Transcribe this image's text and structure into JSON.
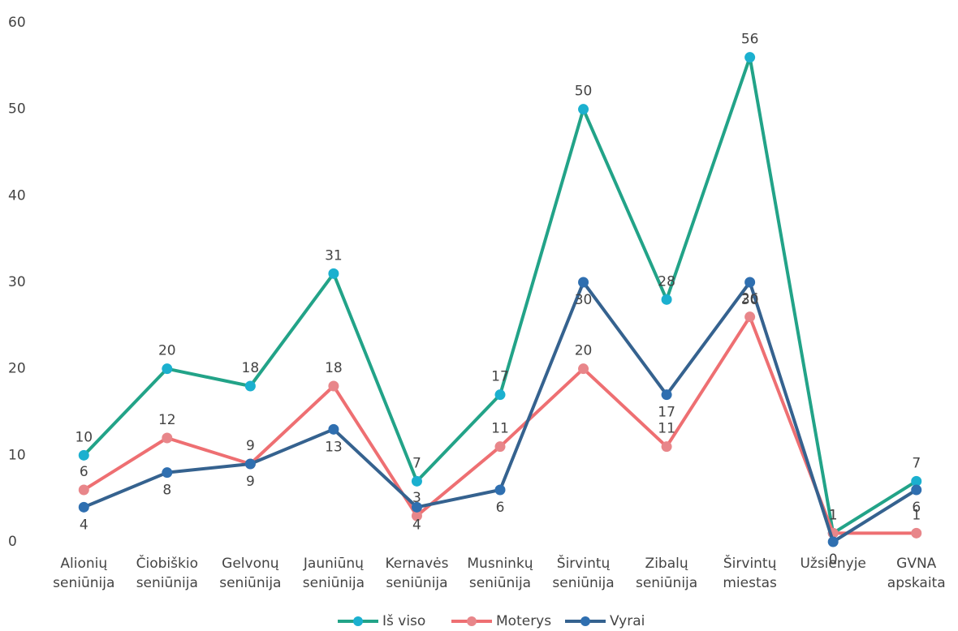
{
  "chart_data": {
    "type": "line",
    "categories": [
      [
        "Alionių",
        "seniūnija"
      ],
      [
        "Čiobiškio",
        "seniūnija"
      ],
      [
        "Gelvonų",
        "seniūnija"
      ],
      [
        "Jauniūnų",
        "seniūnija"
      ],
      [
        "Kernavės",
        "seniūnija"
      ],
      [
        "Musninkų",
        "seniūnija"
      ],
      [
        "Širvintų",
        "seniūnija"
      ],
      [
        "Zibalų",
        "seniūnija"
      ],
      [
        "Širvintų",
        "miestas"
      ],
      [
        "Užsienyje"
      ],
      [
        "GVNA",
        "apskaita"
      ]
    ],
    "series": [
      {
        "name": "Iš viso",
        "color": "#22a388",
        "marker_color": "#1bb0cf",
        "label_color": "#2a9d80",
        "values": [
          10,
          20,
          18,
          31,
          7,
          17,
          50,
          28,
          56,
          1,
          7
        ]
      },
      {
        "name": "Moterys",
        "color": "#ee6f72",
        "marker_color": "#e8868a",
        "label_color": "#ef8487",
        "values": [
          6,
          12,
          9,
          18,
          3,
          11,
          20,
          11,
          26,
          1,
          1
        ]
      },
      {
        "name": "Vyrai",
        "color": "#35628f",
        "marker_color": "#2f6fb0",
        "label_color": "#4a89d4",
        "values": [
          4,
          8,
          9,
          13,
          4,
          6,
          30,
          17,
          30,
          0,
          6
        ]
      }
    ],
    "ylim": [
      0,
      60
    ],
    "yticks": [
      0,
      10,
      20,
      30,
      40,
      50,
      60
    ],
    "grid": false,
    "legend": "bottom"
  }
}
